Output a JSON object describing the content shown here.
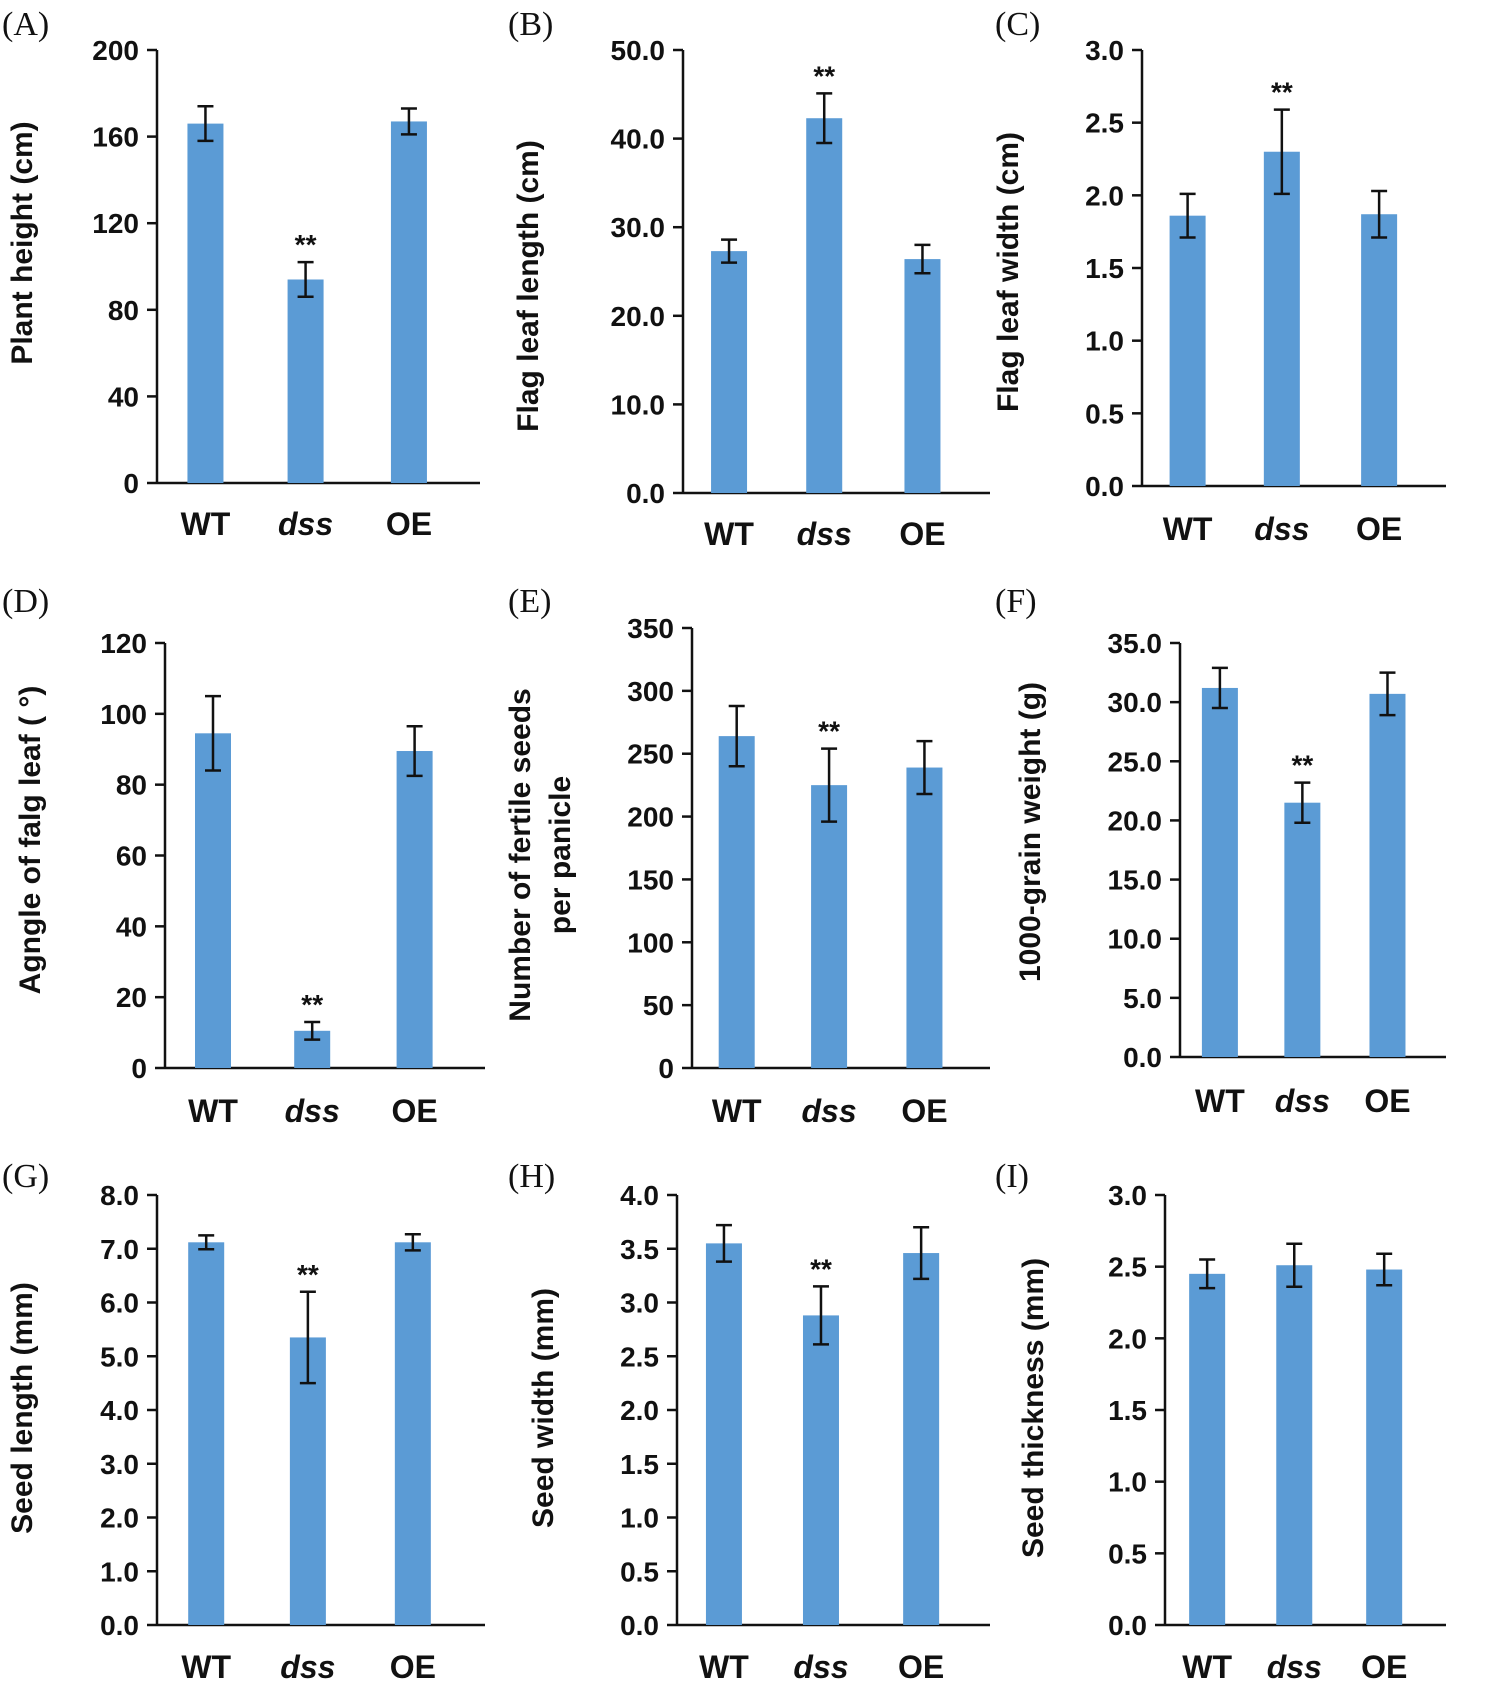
{
  "colors": {
    "bar": "#5b9bd5",
    "axis": "#111111",
    "text": "#111111"
  },
  "chart_data": [
    {
      "id": "A",
      "panel_label": "(A)",
      "type": "bar",
      "ylabel": [
        "Plant height (cm)"
      ],
      "ylim": [
        0,
        200
      ],
      "yticks": [
        "0",
        "40",
        "80",
        "120",
        "160",
        "200"
      ],
      "categories": [
        "WT",
        "dss",
        "OE"
      ],
      "italic_categories": [
        false,
        true,
        false
      ],
      "values": [
        166,
        94,
        167
      ],
      "errors": [
        8,
        8,
        6
      ],
      "significance": [
        "",
        "**",
        ""
      ]
    },
    {
      "id": "B",
      "panel_label": "(B)",
      "type": "bar",
      "ylabel": [
        "Flag leaf length (cm)"
      ],
      "ylim": [
        0,
        50
      ],
      "yticks": [
        "0.0",
        "10.0",
        "20.0",
        "30.0",
        "40.0",
        "50.0"
      ],
      "categories": [
        "WT",
        "dss",
        "OE"
      ],
      "italic_categories": [
        false,
        true,
        false
      ],
      "values": [
        27.3,
        42.3,
        26.4
      ],
      "errors": [
        1.3,
        2.8,
        1.6
      ],
      "significance": [
        "",
        "**",
        ""
      ]
    },
    {
      "id": "C",
      "panel_label": "(C)",
      "type": "bar",
      "ylabel": [
        "Flag leaf width (cm)"
      ],
      "ylim": [
        0,
        3
      ],
      "yticks": [
        "0.0",
        "0.5",
        "1.0",
        "1.5",
        "2.0",
        "2.5",
        "3.0"
      ],
      "categories": [
        "WT",
        "dss",
        "OE"
      ],
      "italic_categories": [
        false,
        true,
        false
      ],
      "values": [
        1.86,
        2.3,
        1.87
      ],
      "errors": [
        0.15,
        0.29,
        0.16
      ],
      "significance": [
        "",
        "**",
        ""
      ]
    },
    {
      "id": "D",
      "panel_label": "(D)",
      "type": "bar",
      "ylabel": [
        "Agngle of falg leaf ( °)"
      ],
      "ylim": [
        0,
        120
      ],
      "yticks": [
        "0",
        "20",
        "40",
        "60",
        "80",
        "100",
        "120"
      ],
      "categories": [
        "WT",
        "dss",
        "OE"
      ],
      "italic_categories": [
        false,
        true,
        false
      ],
      "values": [
        94.5,
        10.5,
        89.5
      ],
      "errors": [
        10.5,
        2.5,
        7
      ],
      "significance": [
        "",
        "**",
        ""
      ]
    },
    {
      "id": "E",
      "panel_label": "(E)",
      "type": "bar",
      "ylabel": [
        "Number of fertile seeds",
        "per panicle"
      ],
      "ylim": [
        0,
        350
      ],
      "yticks": [
        "0",
        "50",
        "100",
        "150",
        "200",
        "250",
        "300",
        "350"
      ],
      "categories": [
        "WT",
        "dss",
        "OE"
      ],
      "italic_categories": [
        false,
        true,
        false
      ],
      "values": [
        264,
        225,
        239
      ],
      "errors": [
        24,
        29,
        21
      ],
      "significance": [
        "",
        "**",
        ""
      ]
    },
    {
      "id": "F",
      "panel_label": "(F)",
      "type": "bar",
      "ylabel": [
        "1000-grain weight (g)"
      ],
      "ylim": [
        0,
        35
      ],
      "yticks": [
        "0.0",
        "5.0",
        "10.0",
        "15.0",
        "20.0",
        "25.0",
        "30.0",
        "35.0"
      ],
      "categories": [
        "WT",
        "dss",
        "OE"
      ],
      "italic_categories": [
        false,
        true,
        false
      ],
      "values": [
        31.2,
        21.5,
        30.7
      ],
      "errors": [
        1.7,
        1.7,
        1.8
      ],
      "significance": [
        "",
        "**",
        ""
      ]
    },
    {
      "id": "G",
      "panel_label": "(G)",
      "type": "bar",
      "ylabel": [
        "Seed length (mm)"
      ],
      "ylim": [
        0,
        8
      ],
      "yticks": [
        "0.0",
        "1.0",
        "2.0",
        "3.0",
        "4.0",
        "5.0",
        "6.0",
        "7.0",
        "8.0"
      ],
      "categories": [
        "WT",
        "dss",
        "OE"
      ],
      "italic_categories": [
        false,
        true,
        false
      ],
      "values": [
        7.12,
        5.35,
        7.12
      ],
      "errors": [
        0.13,
        0.85,
        0.15
      ],
      "significance": [
        "",
        "**",
        ""
      ]
    },
    {
      "id": "H",
      "panel_label": "(H)",
      "type": "bar",
      "ylabel": [
        "Seed width (mm)"
      ],
      "ylim": [
        0,
        4
      ],
      "yticks": [
        "0.0",
        "0.5",
        "1.0",
        "1.5",
        "2.0",
        "2.5",
        "3.0",
        "3.5",
        "4.0"
      ],
      "categories": [
        "WT",
        "dss",
        "OE"
      ],
      "italic_categories": [
        false,
        true,
        false
      ],
      "values": [
        3.55,
        2.88,
        3.46
      ],
      "errors": [
        0.17,
        0.27,
        0.24
      ],
      "significance": [
        "",
        "**",
        ""
      ]
    },
    {
      "id": "I",
      "panel_label": "(I)",
      "type": "bar",
      "ylabel": [
        "Seed thickness (mm)"
      ],
      "ylim": [
        0,
        3
      ],
      "yticks": [
        "0.0",
        "0.5",
        "1.0",
        "1.5",
        "2.0",
        "2.5",
        "3.0"
      ],
      "categories": [
        "WT",
        "dss",
        "OE"
      ],
      "italic_categories": [
        false,
        true,
        false
      ],
      "values": [
        2.45,
        2.51,
        2.48
      ],
      "errors": [
        0.1,
        0.15,
        0.11
      ],
      "significance": [
        "",
        "",
        ""
      ]
    }
  ]
}
